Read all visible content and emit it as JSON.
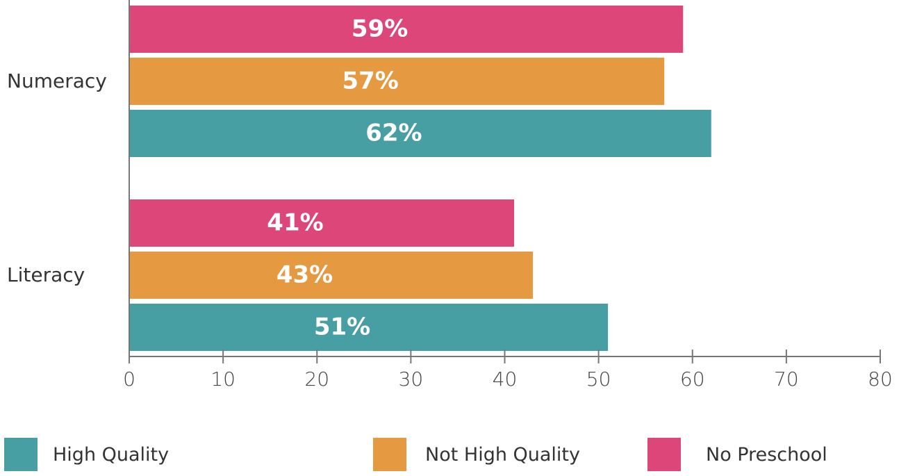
{
  "chart_data": {
    "type": "bar",
    "orientation": "horizontal",
    "categories": [
      "Numeracy",
      "Literacy"
    ],
    "series": [
      {
        "name": "No Preschool",
        "color": "#dc4679",
        "values": [
          59,
          41
        ],
        "labels": [
          "59%",
          "41%"
        ]
      },
      {
        "name": "Not High Quality",
        "color": "#e59a42",
        "values": [
          57,
          43
        ],
        "labels": [
          "57%",
          "43%"
        ]
      },
      {
        "name": "High Quality",
        "color": "#479fa4",
        "values": [
          62,
          51
        ],
        "labels": [
          "62%",
          "51%"
        ]
      }
    ],
    "xlim": [
      0,
      80
    ],
    "xticks": [
      "0",
      "10",
      "20",
      "30",
      "40",
      "50",
      "60",
      "70",
      "80"
    ],
    "grid": false,
    "legend": {
      "placement": "bottom",
      "items": [
        {
          "label": "High Quality",
          "color": "#479fa4"
        },
        {
          "label": "Not High Quality",
          "color": "#e59a42"
        },
        {
          "label": "No Preschool",
          "color": "#dc4679"
        }
      ]
    }
  }
}
